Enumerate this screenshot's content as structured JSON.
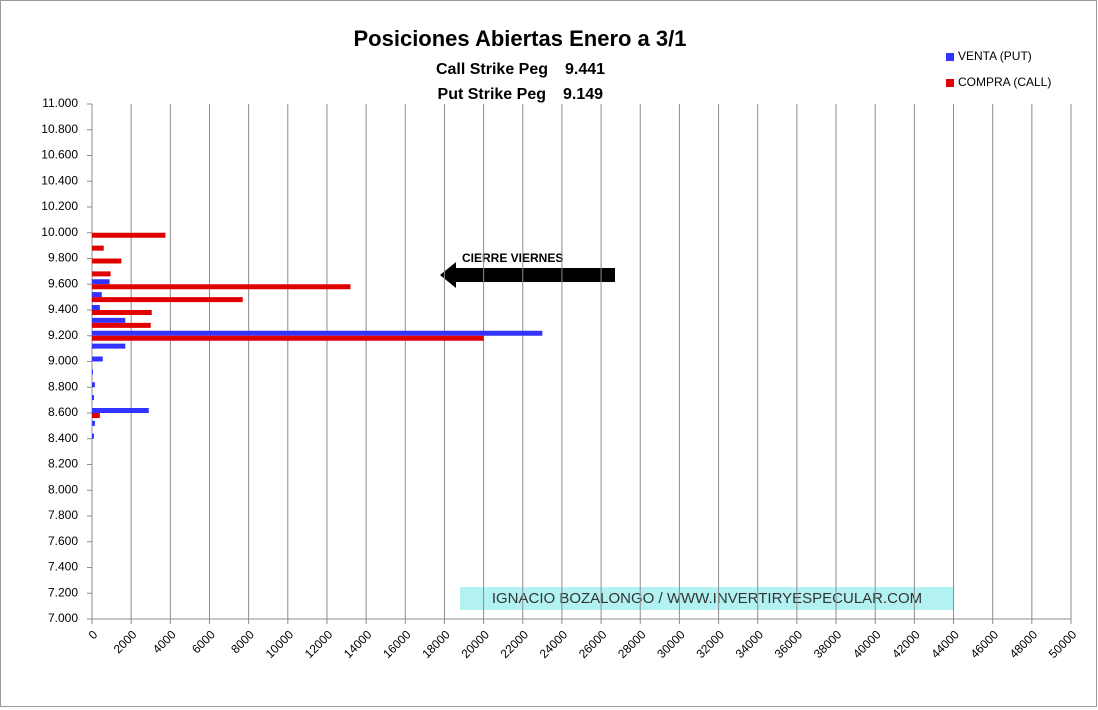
{
  "chart_data": {
    "type": "hbar",
    "title": "Posiciones Abiertas Enero a 3/1",
    "subtitle_lines": [
      [
        "Call Strike Peg",
        "9.441"
      ],
      [
        "Put Strike Peg",
        "9.149"
      ]
    ],
    "annotation": "CIERRE VIERNES",
    "watermark": "IGNACIO BOZALONGO / WWW.INVERTIRYESPECULAR.COM",
    "strikes": [
      8400,
      8500,
      8600,
      8700,
      8800,
      8900,
      9000,
      9100,
      9200,
      9300,
      9400,
      9500,
      9600,
      9700,
      9800,
      9900,
      10000
    ],
    "series": [
      {
        "name": "VENTA (PUT)",
        "color": "#3333ff",
        "values": [
          100,
          150,
          2900,
          100,
          150,
          50,
          550,
          1700,
          23000,
          1700,
          400,
          500,
          900,
          0,
          0,
          0,
          0
        ]
      },
      {
        "name": "COMPRA (CALL)",
        "color": "#e00000",
        "values": [
          0,
          0,
          400,
          0,
          0,
          0,
          0,
          0,
          20000,
          3000,
          3050,
          7700,
          13200,
          950,
          1500,
          600,
          3750
        ]
      }
    ],
    "xlim": [
      0,
      50000
    ],
    "xticks": [
      0,
      2000,
      4000,
      6000,
      8000,
      10000,
      12000,
      14000,
      16000,
      18000,
      20000,
      22000,
      24000,
      26000,
      28000,
      30000,
      32000,
      34000,
      36000,
      38000,
      40000,
      42000,
      44000,
      46000,
      48000,
      50000
    ],
    "ylim": [
      7000,
      11000
    ],
    "yticks": [
      {
        "value": 7000,
        "label": "7.000"
      },
      {
        "value": 7200,
        "label": "7.200"
      },
      {
        "value": 7400,
        "label": "7.400"
      },
      {
        "value": 7600,
        "label": "7.600"
      },
      {
        "value": 7800,
        "label": "7.800"
      },
      {
        "value": 8000,
        "label": "8.000"
      },
      {
        "value": 8200,
        "label": "8.200"
      },
      {
        "value": 8400,
        "label": "8.400"
      },
      {
        "value": 8600,
        "label": "8.600"
      },
      {
        "value": 8800,
        "label": "8.800"
      },
      {
        "value": 9000,
        "label": "9.000"
      },
      {
        "value": 9200,
        "label": "9.200"
      },
      {
        "value": 9400,
        "label": "9.400"
      },
      {
        "value": 9600,
        "label": "9.600"
      },
      {
        "value": 9800,
        "label": "9.800"
      },
      {
        "value": 10000,
        "label": "10.000"
      },
      {
        "value": 10200,
        "label": "10.200"
      },
      {
        "value": 10400,
        "label": "10.400"
      },
      {
        "value": 10600,
        "label": "10.600"
      },
      {
        "value": 10800,
        "label": "10.800"
      },
      {
        "value": 11000,
        "label": "11.000"
      }
    ],
    "grid": true
  }
}
